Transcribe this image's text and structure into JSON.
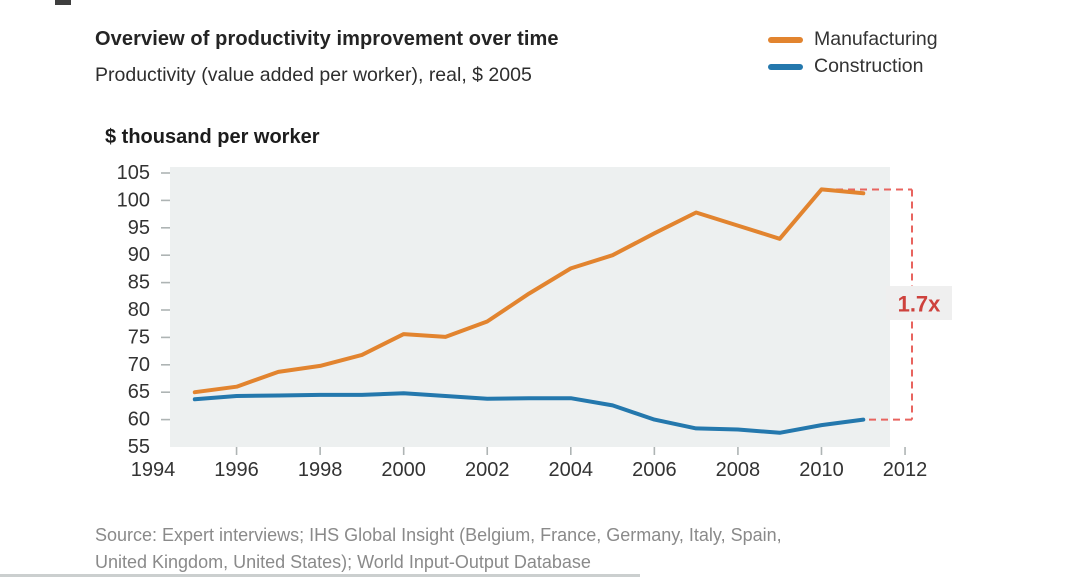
{
  "header": {
    "title": "Overview of productivity improvement over time",
    "subtitle": "Productivity (value added per worker), real, $ 2005"
  },
  "legend": {
    "items": [
      {
        "label": "Manufacturing",
        "color": "#E2842F"
      },
      {
        "label": "Construction",
        "color": "#2478AD"
      }
    ]
  },
  "chart_data": {
    "type": "line",
    "title": "Overview of productivity improvement over time",
    "unit_label": "$ thousand per worker",
    "xlabel": "",
    "ylabel": "$ thousand per worker",
    "xlim": [
      1994,
      2012
    ],
    "ylim": [
      55,
      105
    ],
    "grid": false,
    "legend_position": "top-right",
    "plot_background": "#EDF0F0",
    "x_ticks": [
      1994,
      1996,
      1998,
      2000,
      2002,
      2004,
      2006,
      2008,
      2010,
      2012
    ],
    "y_ticks": [
      105,
      100,
      95,
      90,
      85,
      80,
      75,
      70,
      65,
      60,
      55
    ],
    "x": [
      1995,
      1996,
      1997,
      1998,
      1999,
      2000,
      2001,
      2002,
      2003,
      2004,
      2005,
      2006,
      2007,
      2008,
      2009,
      2010,
      2011
    ],
    "series": [
      {
        "name": "Manufacturing",
        "color": "#E2842F",
        "values": [
          65,
          66,
          68.7,
          69.8,
          71.8,
          75.6,
          75.1,
          77.9,
          83,
          87.6,
          90,
          94,
          97.8,
          95.4,
          93,
          102,
          101.3
        ]
      },
      {
        "name": "Construction",
        "color": "#2478AD",
        "values": [
          63.7,
          64.3,
          64.4,
          64.5,
          64.5,
          64.8,
          64.3,
          63.8,
          63.9,
          63.9,
          62.6,
          60,
          58.4,
          58.2,
          57.6,
          59,
          60
        ]
      }
    ],
    "annotation": {
      "label": "1.7x",
      "top_value": 102,
      "bottom_value": 60,
      "line_color": "#E8645F",
      "text_color": "#CE423D",
      "box_color": "#EFEFEF"
    }
  },
  "source": {
    "line1": "Source: Expert interviews; IHS Global Insight (Belgium, France, Germany, Italy, Spain,",
    "line2": "United Kingdom, United States); World Input-Output Database"
  }
}
